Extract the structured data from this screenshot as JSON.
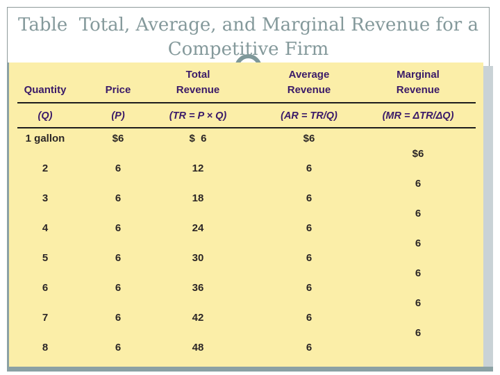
{
  "slide": {
    "title_line1": "Table  Total, Average, and Marginal Revenue for a",
    "title_line2": "Competitive Firm"
  },
  "table": {
    "columns": [
      {
        "line1": "",
        "line2": "Quantity",
        "formula": "(Q)"
      },
      {
        "line1": "",
        "line2": "Price",
        "formula": "(P)"
      },
      {
        "line1": "Total",
        "line2": "Revenue",
        "formula": "(TR = P × Q)"
      },
      {
        "line1": "Average",
        "line2": "Revenue",
        "formula": "(AR = TR/Q)"
      },
      {
        "line1": "Marginal",
        "line2": "Revenue",
        "formula": "(MR = ΔTR/ΔQ)"
      }
    ],
    "rows": [
      {
        "quantity": "1 gallon",
        "price": "$6",
        "total_revenue": "$  6",
        "average_revenue": "$6"
      },
      {
        "quantity": "2",
        "price": "6",
        "total_revenue": "12",
        "average_revenue": "6"
      },
      {
        "quantity": "3",
        "price": "6",
        "total_revenue": "18",
        "average_revenue": "6"
      },
      {
        "quantity": "4",
        "price": "6",
        "total_revenue": "24",
        "average_revenue": "6"
      },
      {
        "quantity": "5",
        "price": "6",
        "total_revenue": "30",
        "average_revenue": "6"
      },
      {
        "quantity": "6",
        "price": "6",
        "total_revenue": "36",
        "average_revenue": "6"
      },
      {
        "quantity": "7",
        "price": "6",
        "total_revenue": "42",
        "average_revenue": "6"
      },
      {
        "quantity": "8",
        "price": "6",
        "total_revenue": "48",
        "average_revenue": "6"
      }
    ],
    "marginal_values": [
      "$6",
      "6",
      "6",
      "6",
      "6",
      "6",
      "6"
    ]
  },
  "colors": {
    "table_background": "#fbeea8",
    "header_text": "#3a1a68",
    "data_text": "#2b2626",
    "title_text": "#84999b",
    "frame_teal": "#8ba1a4",
    "right_strip_gray": "#c9d2d6",
    "title_border": "#8e9a9a"
  },
  "chart_data": {
    "type": "table",
    "title": "Table  Total, Average, and Marginal Revenue for a Competitive Firm",
    "columns": [
      "Quantity (Q)",
      "Price (P)",
      "Total Revenue (TR = P × Q)",
      "Average Revenue (AR = TR/Q)",
      "Marginal Revenue (MR = ΔTR/ΔQ)"
    ],
    "quantity": [
      "1 gallon",
      "2",
      "3",
      "4",
      "5",
      "6",
      "7",
      "8"
    ],
    "price": [
      6,
      6,
      6,
      6,
      6,
      6,
      6,
      6
    ],
    "total_revenue": [
      6,
      12,
      18,
      24,
      30,
      36,
      42,
      48
    ],
    "average_revenue": [
      6,
      6,
      6,
      6,
      6,
      6,
      6,
      6
    ],
    "marginal_revenue_between_rows": [
      6,
      6,
      6,
      6,
      6,
      6,
      6
    ]
  }
}
